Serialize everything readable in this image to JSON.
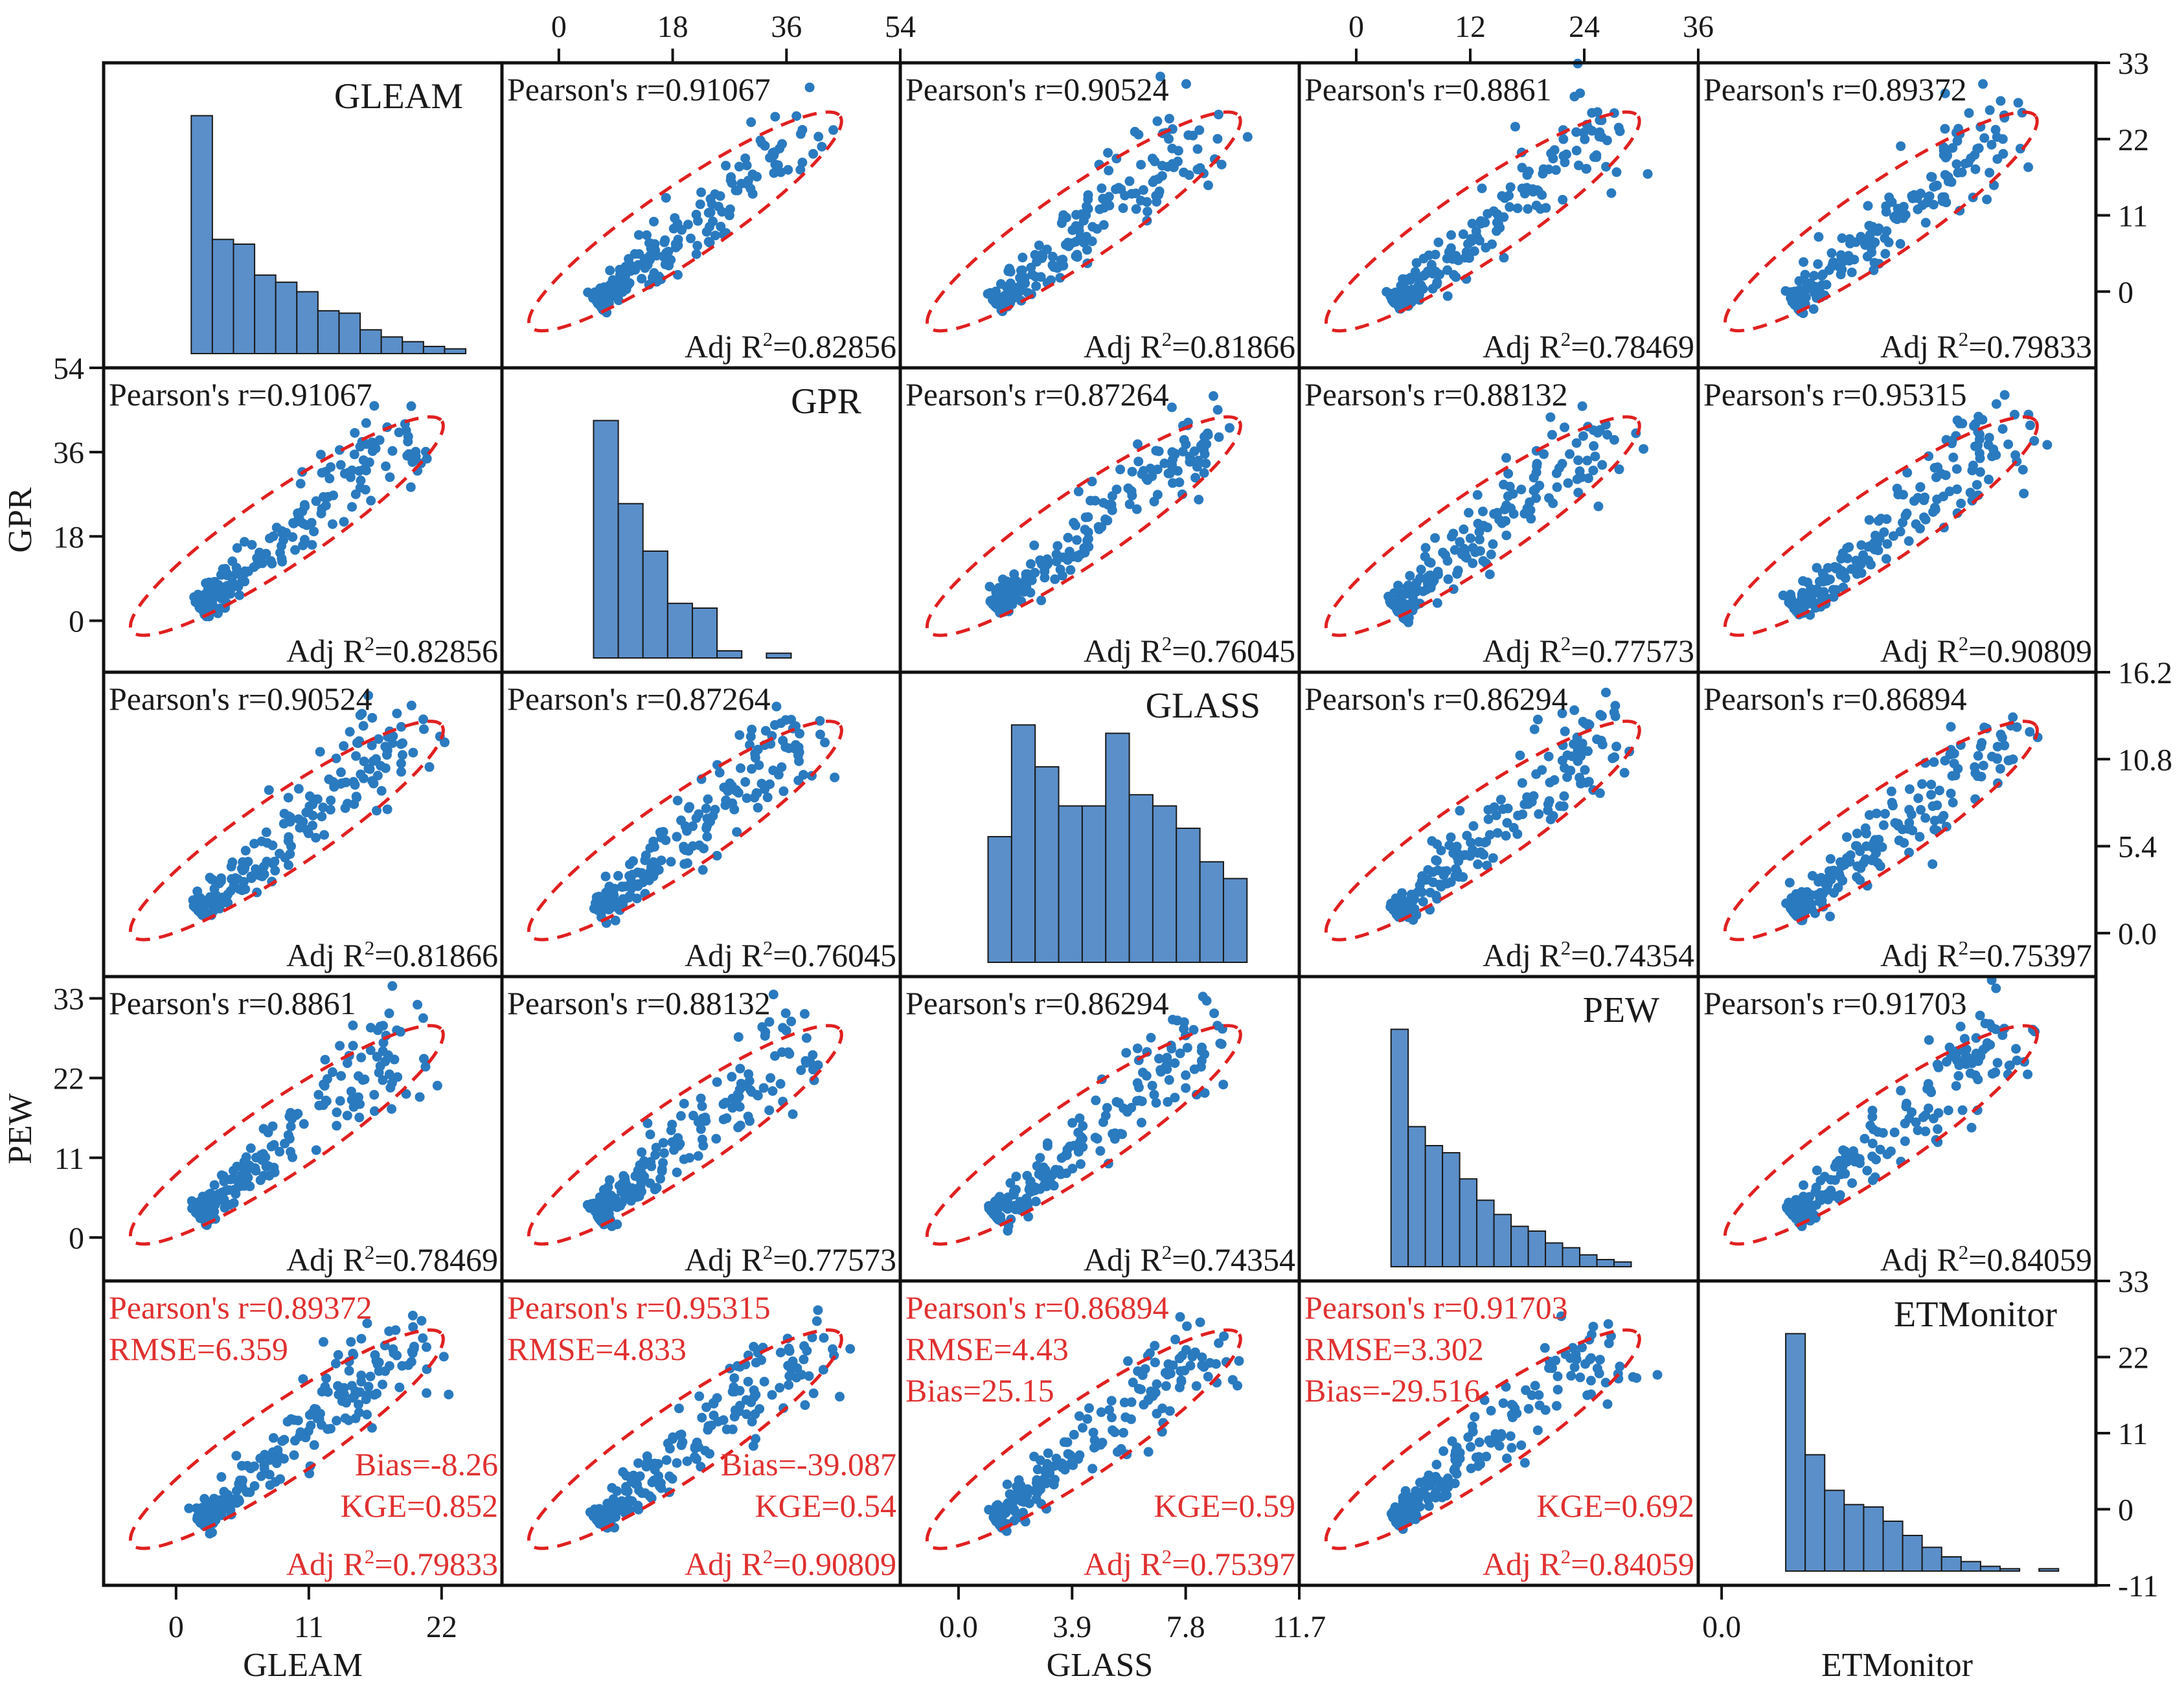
{
  "colors": {
    "point": "#2a7abf",
    "bar_fill": "#5b8fc9",
    "bar_stroke": "#1a1a1a",
    "ellipse": "#e02020",
    "text": "#1a1a1a",
    "metric_red": "#e03030"
  },
  "chart_data": {
    "type": "scatter-matrix",
    "variables": [
      "GLEAM",
      "GPR",
      "GLASS",
      "PEW",
      "ETMonitor"
    ],
    "diagonal": {
      "type": "histogram",
      "titles": [
        "GLEAM",
        "GPR",
        "GLASS",
        "PEW",
        "ETMonitor"
      ],
      "counts": [
        [
          100,
          48,
          46,
          33,
          30,
          26,
          18,
          17,
          10,
          7,
          5,
          3,
          2
        ],
        [
          100,
          65,
          45,
          23,
          21,
          3,
          0,
          2
        ],
        [
          45,
          85,
          70,
          56,
          56,
          82,
          60,
          56,
          48,
          36,
          30
        ],
        [
          100,
          59,
          51,
          48,
          37,
          28,
          22,
          17,
          15,
          10,
          8,
          5,
          3,
          2
        ],
        [
          100,
          49,
          34,
          28,
          27,
          21,
          15,
          10,
          6,
          4,
          2,
          1,
          0,
          1
        ]
      ]
    },
    "axes": {
      "GLEAM_x": {
        "label": "GLEAM",
        "ticks": [
          "0",
          "11",
          "22"
        ],
        "range": [
          -6,
          27
        ]
      },
      "GPR_x_top": {
        "ticks": [
          "0",
          "18",
          "36",
          "54"
        ],
        "range": [
          -9,
          54
        ]
      },
      "GLASS_x": {
        "label": "GLASS",
        "ticks": [
          "0.0",
          "3.9",
          "7.8",
          "11.7"
        ],
        "range": [
          -2,
          11.7
        ]
      },
      "PEW_x_top": {
        "ticks": [
          "0",
          "12",
          "24",
          "36"
        ],
        "range": [
          -6,
          36
        ]
      },
      "ETMonitor_x": {
        "label": "ETMonitor",
        "ticks": [
          "0.0"
        ],
        "range": [
          -2,
          32
        ]
      },
      "GLEAM_y_right": {
        "ticks": [
          "33",
          "22",
          "11",
          "0"
        ],
        "range": [
          -11,
          33
        ]
      },
      "GPR_y_left": {
        "label": "GPR",
        "ticks": [
          "54",
          "36",
          "18",
          "0"
        ],
        "range": [
          -11,
          54
        ]
      },
      "GLASS_y_right": {
        "ticks": [
          "16.2",
          "10.8",
          "5.4",
          "0.0"
        ],
        "range": [
          -2.7,
          16.2
        ]
      },
      "PEW_y_left": {
        "label": "PEW",
        "ticks": [
          "33",
          "22",
          "11",
          "0"
        ],
        "range": [
          -6,
          36
        ]
      },
      "ETMonitor_y_right": {
        "ticks": [
          "33",
          "22",
          "11",
          "0",
          "-11"
        ],
        "range": [
          -11,
          33
        ]
      }
    },
    "pairs": [
      {
        "x": "GLEAM",
        "y": "GPR",
        "pearson_r": 0.91067,
        "adj_r2": 0.82856
      },
      {
        "x": "GLEAM",
        "y": "GLASS",
        "pearson_r": 0.90524,
        "adj_r2": 0.81866
      },
      {
        "x": "GLEAM",
        "y": "PEW",
        "pearson_r": 0.8861,
        "adj_r2": 0.78469
      },
      {
        "x": "GLEAM",
        "y": "ETMonitor",
        "pearson_r": 0.89372,
        "adj_r2": 0.79833,
        "rmse": 6.359,
        "bias": -8.26,
        "kge": 0.852
      },
      {
        "x": "GPR",
        "y": "GLASS",
        "pearson_r": 0.87264,
        "adj_r2": 0.76045
      },
      {
        "x": "GPR",
        "y": "PEW",
        "pearson_r": 0.88132,
        "adj_r2": 0.77573
      },
      {
        "x": "GPR",
        "y": "ETMonitor",
        "pearson_r": 0.95315,
        "adj_r2": 0.90809,
        "rmse": 4.833,
        "bias": -39.087,
        "kge": 0.54
      },
      {
        "x": "GLASS",
        "y": "PEW",
        "pearson_r": 0.86294,
        "adj_r2": 0.74354
      },
      {
        "x": "GLASS",
        "y": "ETMonitor",
        "pearson_r": 0.86894,
        "adj_r2": 0.75397,
        "rmse": 4.43,
        "bias": 25.15,
        "kge": 0.59
      },
      {
        "x": "PEW",
        "y": "ETMonitor",
        "pearson_r": 0.91703,
        "adj_r2": 0.84059,
        "rmse": 3.302,
        "bias": -29.516,
        "kge": 0.692
      }
    ],
    "cells": [
      {
        "row": 0,
        "col": 1,
        "text": [
          "Pearson's r=0.91067",
          "Adj R2=0.82856"
        ]
      },
      {
        "row": 0,
        "col": 2,
        "text": [
          "Pearson's r=0.90524",
          "Adj R2=0.81866"
        ]
      },
      {
        "row": 0,
        "col": 3,
        "text": [
          "Pearson's r=0.8861",
          "Adj R2=0.78469"
        ]
      },
      {
        "row": 0,
        "col": 4,
        "text": [
          "Pearson's r=0.89372",
          "Adj R2=0.79833"
        ]
      },
      {
        "row": 1,
        "col": 0,
        "text": [
          "Pearson's r=0.91067",
          "Adj R2=0.82856"
        ]
      },
      {
        "row": 1,
        "col": 2,
        "text": [
          "Pearson's r=0.87264",
          "Adj R2=0.76045"
        ]
      },
      {
        "row": 1,
        "col": 3,
        "text": [
          "Pearson's r=0.88132",
          "Adj R2=0.77573"
        ]
      },
      {
        "row": 1,
        "col": 4,
        "text": [
          "Pearson's r=0.95315",
          "Adj R2=0.90809"
        ]
      },
      {
        "row": 2,
        "col": 0,
        "text": [
          "Pearson's r=0.90524",
          "Adj R2=0.81866"
        ]
      },
      {
        "row": 2,
        "col": 1,
        "text": [
          "Pearson's r=0.87264",
          "Adj R2=0.76045"
        ]
      },
      {
        "row": 2,
        "col": 3,
        "text": [
          "Pearson's r=0.86294",
          "Adj R2=0.74354"
        ]
      },
      {
        "row": 2,
        "col": 4,
        "text": [
          "Pearson's r=0.86894",
          "Adj R2=0.75397"
        ]
      },
      {
        "row": 3,
        "col": 0,
        "text": [
          "Pearson's r=0.8861",
          "Adj R2=0.78469"
        ]
      },
      {
        "row": 3,
        "col": 1,
        "text": [
          "Pearson's r=0.88132",
          "Adj R2=0.77573"
        ]
      },
      {
        "row": 3,
        "col": 2,
        "text": [
          "Pearson's r=0.86294",
          "Adj R2=0.74354"
        ]
      },
      {
        "row": 3,
        "col": 4,
        "text": [
          "Pearson's r=0.91703",
          "Adj R2=0.84059"
        ]
      },
      {
        "row": 4,
        "col": 0,
        "text": [
          "Pearson's r=0.89372",
          "RMSE=6.359",
          "Bias=-8.26",
          "KGE=0.852",
          "Adj R2=0.79833"
        ]
      },
      {
        "row": 4,
        "col": 1,
        "text": [
          "Pearson's r=0.95315",
          "RMSE=4.833",
          "Bias=-39.087",
          "KGE=0.54",
          "Adj R2=0.90809"
        ]
      },
      {
        "row": 4,
        "col": 2,
        "text": [
          "Pearson's r=0.86894",
          "RMSE=4.43",
          "Bias=25.15",
          "KGE=0.59",
          "Adj R2=0.75397"
        ]
      },
      {
        "row": 4,
        "col": 3,
        "text": [
          "Pearson's r=0.91703",
          "RMSE=3.302",
          "Bias=-29.516",
          "KGE=0.692",
          "Adj R2=0.84059"
        ]
      }
    ],
    "ellipse": "red dashed confidence ellipse",
    "points": "blue scatter, several hundred points per panel"
  }
}
